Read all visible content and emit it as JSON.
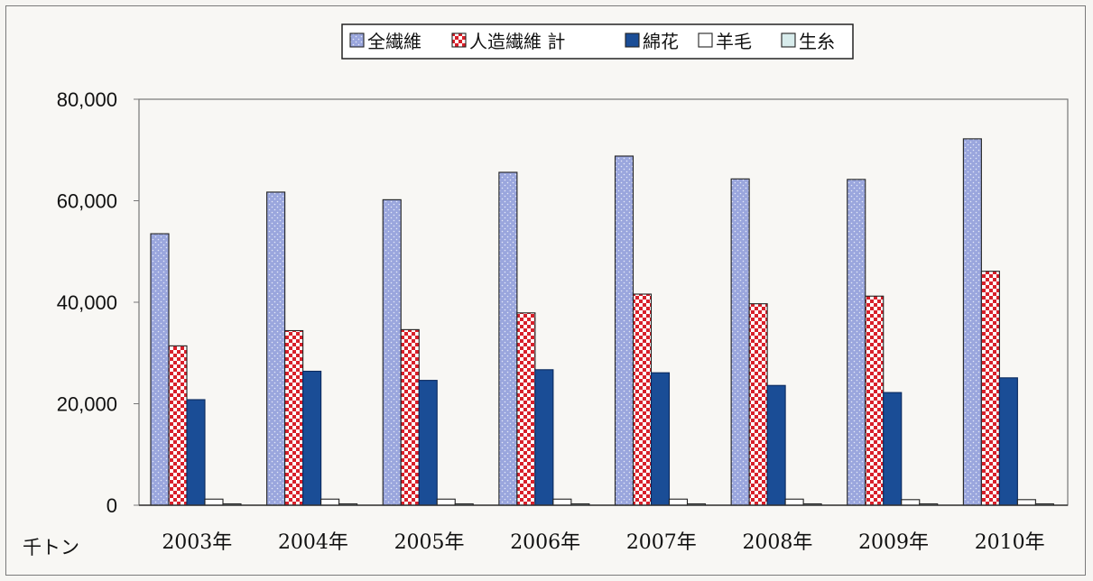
{
  "chart_data": {
    "type": "bar",
    "categories": [
      "2003年",
      "2004年",
      "2005年",
      "2006年",
      "2007年",
      "2008年",
      "2009年",
      "2010年"
    ],
    "series": [
      {
        "name": "全繊維",
        "values": [
          53500,
          61700,
          60200,
          65600,
          68800,
          64300,
          64200,
          72200
        ]
      },
      {
        "name": "人造繊維 計",
        "values": [
          31400,
          34400,
          34600,
          37900,
          41600,
          39700,
          41200,
          46100
        ]
      },
      {
        "name": "綿花",
        "values": [
          20800,
          26400,
          24600,
          26700,
          26100,
          23600,
          22200,
          25100
        ]
      },
      {
        "name": "羊毛",
        "values": [
          1200,
          1200,
          1200,
          1200,
          1200,
          1200,
          1100,
          1100
        ]
      },
      {
        "name": "生糸",
        "values": [
          130,
          120,
          110,
          110,
          120,
          110,
          100,
          100
        ]
      }
    ],
    "ylim": [
      0,
      80000
    ],
    "yticks": [
      "0",
      "20,000",
      "40,000",
      "60,000",
      "80,000"
    ],
    "ylabel": "千トン",
    "xlabel": "",
    "title": "",
    "legend": "top-center",
    "grid": false
  },
  "colors": {
    "全繊維": "#9aa6dd",
    "人造繊維 計": "#d8202a",
    "綿花": "#1a4d96",
    "羊毛": "#ffffff",
    "生糸": "#d8ecec"
  }
}
